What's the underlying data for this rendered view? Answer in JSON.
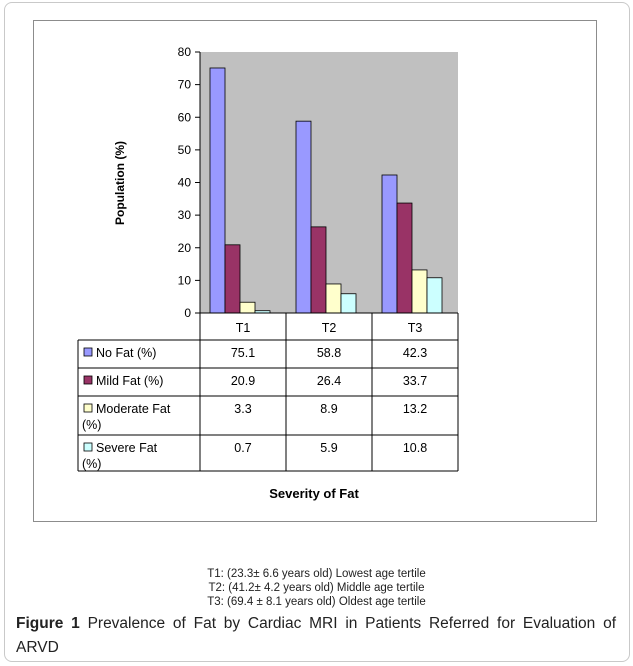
{
  "chart_data": {
    "type": "bar",
    "categories": [
      "T1",
      "T2",
      "T3"
    ],
    "series": [
      {
        "name": "No Fat (%)",
        "values": [
          75.1,
          58.8,
          42.3
        ],
        "color": "#9999ff"
      },
      {
        "name": "Mild Fat (%)",
        "values": [
          20.9,
          26.4,
          33.7
        ],
        "color": "#993366"
      },
      {
        "name": "Moderate Fat (%)",
        "values": [
          3.3,
          8.9,
          13.2
        ],
        "color": "#ffffcc"
      },
      {
        "name": "Severe Fat (%)",
        "values": [
          0.7,
          5.9,
          10.8
        ],
        "color": "#ccffff"
      }
    ],
    "table_values": [
      [
        "75.1",
        "58.8",
        "42.3"
      ],
      [
        "20.9",
        "26.4",
        "33.7"
      ],
      [
        "3.3",
        "8.9",
        "13.2"
      ],
      [
        "0.7",
        "5.9",
        "10.8"
      ]
    ],
    "yticks": [
      "0",
      "10",
      "20",
      "30",
      "40",
      "50",
      "60",
      "70",
      "80"
    ],
    "ylabel": "Population (%)",
    "xlabel": "Severity of Fat",
    "ylim": [
      0,
      80
    ],
    "plot_background": "#c0c0c0",
    "grid": false,
    "legend_placement": "data-table"
  },
  "notes": [
    "T1: (23.3± 6.6 years old) Lowest age tertile",
    "T2: (41.2± 4.2 years old) Middle age tertile",
    "T3: (69.4 ± 8.1 years old) Oldest age tertile"
  ],
  "figure": {
    "label": "Figure 1",
    "caption": "Prevalence of Fat by Cardiac MRI in Patients Referred for Evaluation of ARVD"
  }
}
